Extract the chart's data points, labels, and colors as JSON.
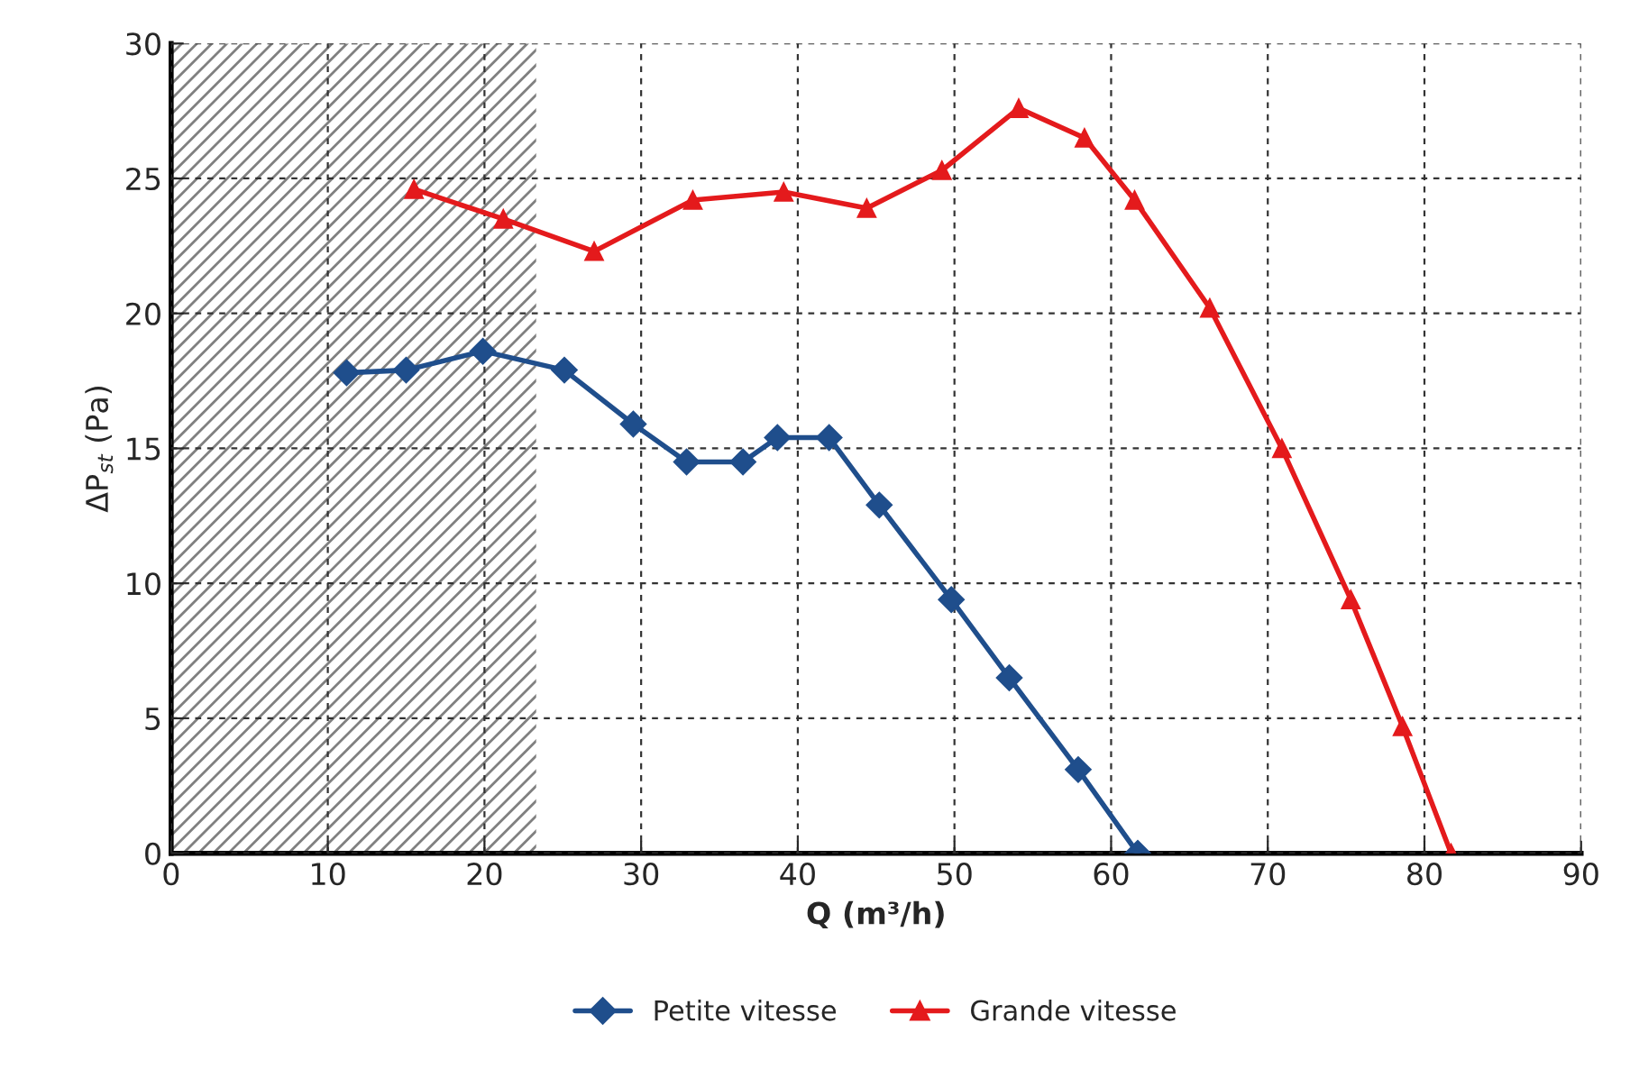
{
  "chart_data": {
    "type": "line",
    "xlabel": "Q (m³/h)",
    "ylabel": "ΔP$_{st}$ (Pa)",
    "xlim": [
      0,
      90
    ],
    "xticks": [
      0,
      10,
      20,
      30,
      40,
      50,
      60,
      70,
      80,
      90
    ],
    "ylim": [
      0,
      30
    ],
    "yticks": [
      0,
      5,
      10,
      15,
      20,
      25,
      30
    ],
    "grid": true,
    "legend": "bottom",
    "line_style": "solid",
    "bands": [
      {
        "axis": "x",
        "from": 0,
        "to": 23.3,
        "color": "#808080"
      }
    ],
    "series": [
      {
        "name": "Petite vitesse",
        "color": "#1f4e8c",
        "marker": "diamond",
        "x": [
          11.2,
          15.0,
          19.9,
          25.1,
          29.5,
          32.9,
          36.5,
          38.7,
          42.0,
          45.2,
          49.8,
          53.5,
          57.9,
          61.7
        ],
        "values": [
          17.8,
          17.9,
          18.6,
          17.9,
          15.9,
          14.5,
          14.5,
          15.4,
          15.4,
          12.9,
          9.4,
          6.5,
          3.1,
          0
        ]
      },
      {
        "name": "Grande vitesse",
        "color": "#e41a1c",
        "marker": "triangle",
        "x": [
          15.5,
          21.2,
          27.0,
          33.3,
          39.1,
          44.4,
          49.2,
          54.1,
          58.3,
          61.5,
          66.3,
          70.9,
          75.3,
          78.6,
          81.7
        ],
        "values": [
          24.6,
          23.5,
          22.3,
          24.2,
          24.5,
          23.9,
          25.3,
          27.6,
          26.5,
          24.2,
          20.2,
          15.0,
          9.4,
          4.7,
          0
        ]
      }
    ]
  }
}
